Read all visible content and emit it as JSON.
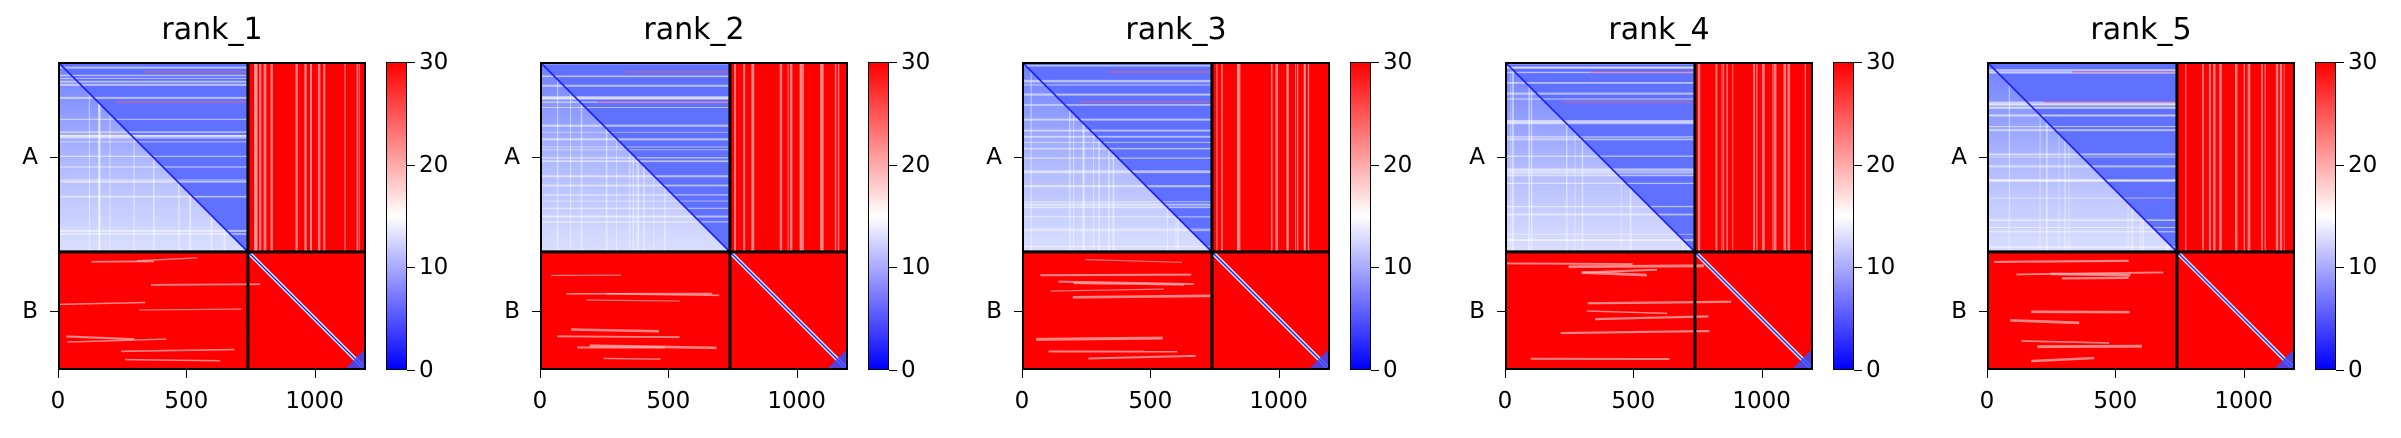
{
  "chart_data": [
    {
      "type": "heatmap",
      "title": "rank_1",
      "rows": [
        "A",
        "B"
      ],
      "xticks": [
        "0",
        "500",
        "1000"
      ],
      "xlim": [
        0,
        1200
      ],
      "segments": [
        "A",
        "B"
      ],
      "segment_boundary": 740,
      "cmap": {
        "low": "#0000ff",
        "mid": "#ffffff",
        "high": "#ff0000"
      },
      "clim": [
        0,
        30
      ],
      "colorbar_ticks": [
        "0",
        "10",
        "20",
        "30"
      ]
    },
    {
      "type": "heatmap",
      "title": "rank_2",
      "rows": [
        "A",
        "B"
      ],
      "xticks": [
        "0",
        "500",
        "1000"
      ],
      "xlim": [
        0,
        1200
      ],
      "segments": [
        "A",
        "B"
      ],
      "segment_boundary": 740,
      "cmap": {
        "low": "#0000ff",
        "mid": "#ffffff",
        "high": "#ff0000"
      },
      "clim": [
        0,
        30
      ],
      "colorbar_ticks": [
        "0",
        "10",
        "20",
        "30"
      ]
    },
    {
      "type": "heatmap",
      "title": "rank_3",
      "rows": [
        "A",
        "B"
      ],
      "xticks": [
        "0",
        "500",
        "1000"
      ],
      "xlim": [
        0,
        1200
      ],
      "segments": [
        "A",
        "B"
      ],
      "segment_boundary": 740,
      "cmap": {
        "low": "#0000ff",
        "mid": "#ffffff",
        "high": "#ff0000"
      },
      "clim": [
        0,
        30
      ],
      "colorbar_ticks": [
        "0",
        "10",
        "20",
        "30"
      ]
    },
    {
      "type": "heatmap",
      "title": "rank_4",
      "rows": [
        "A",
        "B"
      ],
      "xticks": [
        "0",
        "500",
        "1000"
      ],
      "xlim": [
        0,
        1200
      ],
      "segments": [
        "A",
        "B"
      ],
      "segment_boundary": 740,
      "cmap": {
        "low": "#0000ff",
        "mid": "#ffffff",
        "high": "#ff0000"
      },
      "clim": [
        0,
        30
      ],
      "colorbar_ticks": [
        "0",
        "10",
        "20",
        "30"
      ]
    },
    {
      "type": "heatmap",
      "title": "rank_5",
      "rows": [
        "A",
        "B"
      ],
      "xticks": [
        "0",
        "500",
        "1000"
      ],
      "xlim": [
        0,
        1200
      ],
      "segments": [
        "A",
        "B"
      ],
      "segment_boundary": 740,
      "cmap": {
        "low": "#0000ff",
        "mid": "#ffffff",
        "high": "#ff0000"
      },
      "clim": [
        0,
        30
      ],
      "colorbar_ticks": [
        "0",
        "10",
        "20",
        "30"
      ]
    }
  ]
}
